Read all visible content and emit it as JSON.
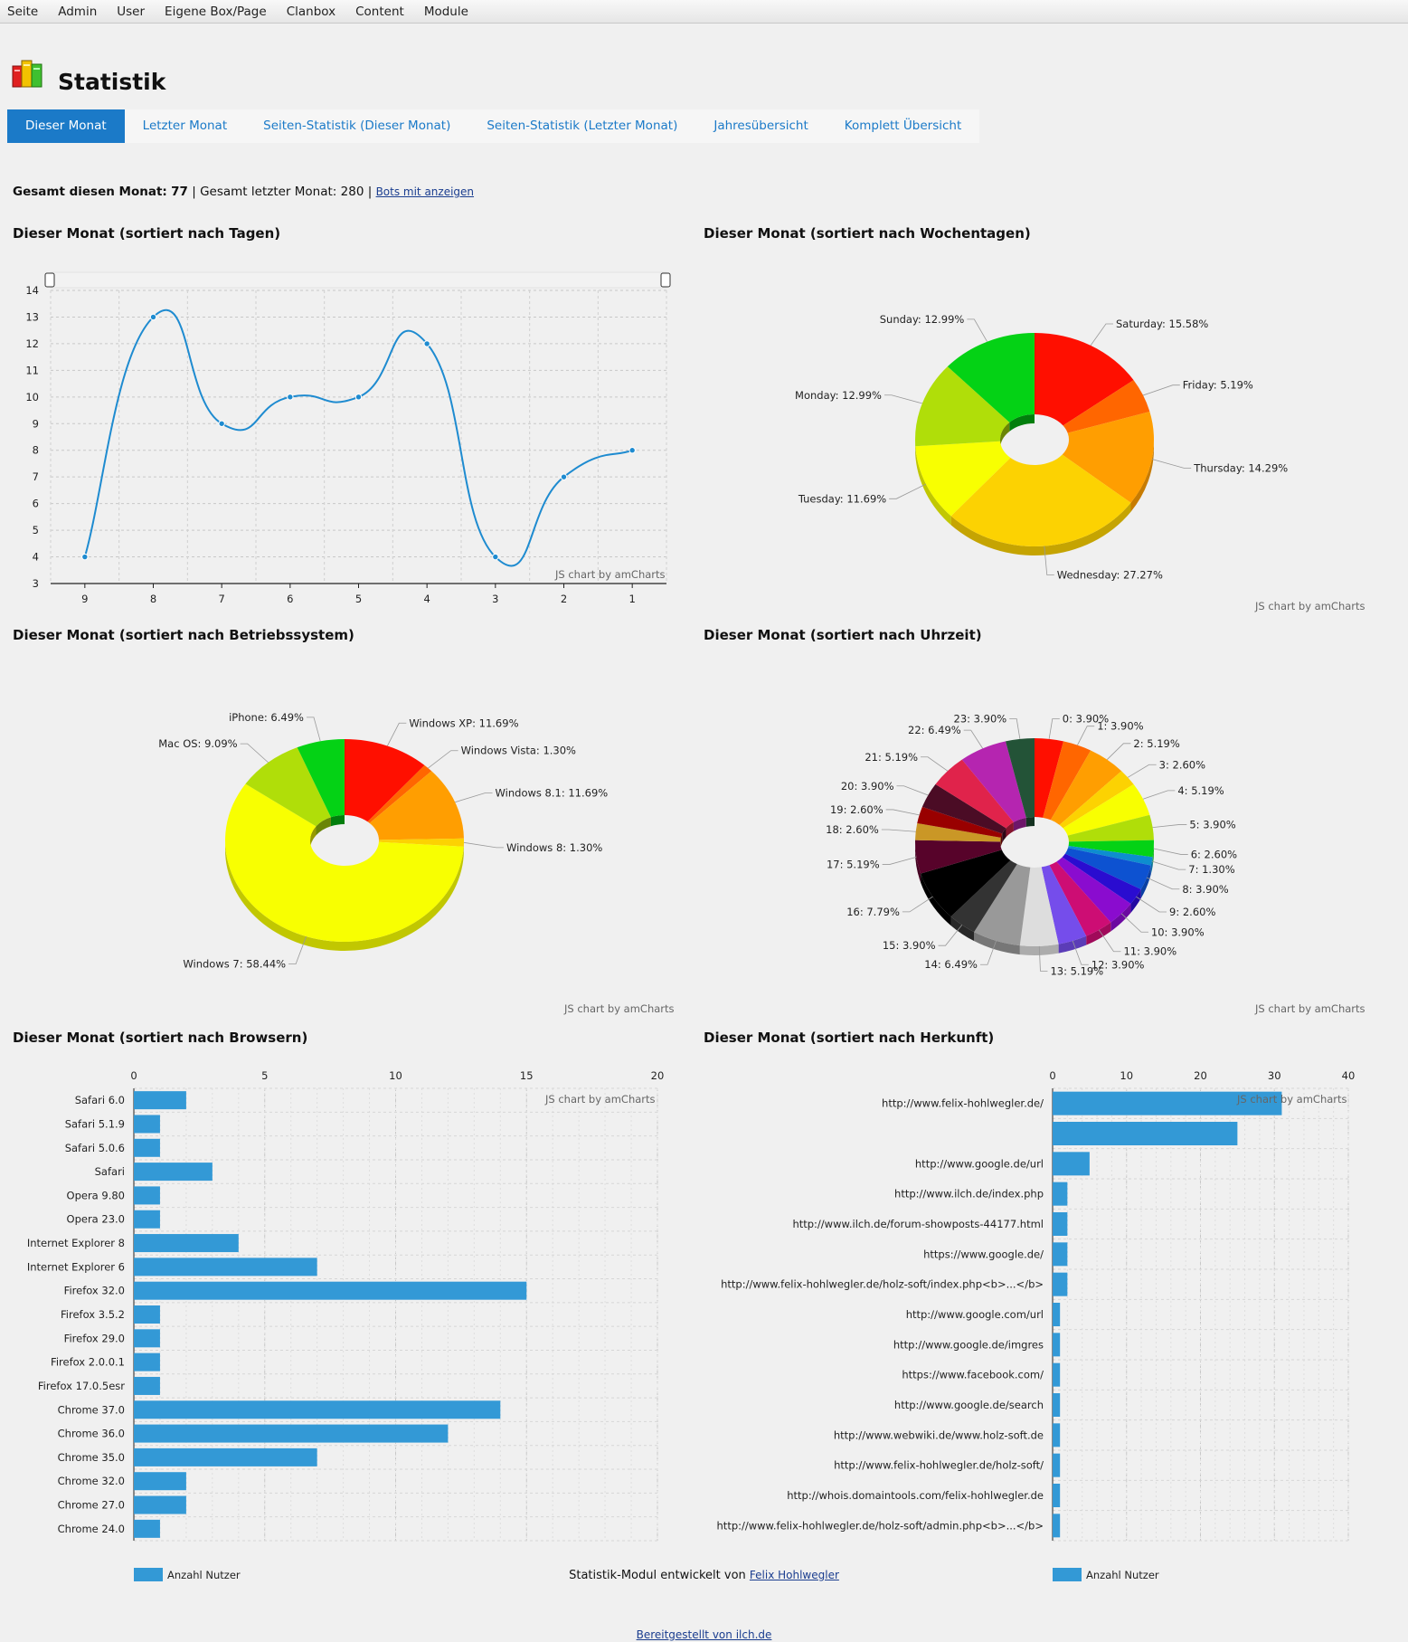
{
  "menu": [
    "Seite",
    "Admin",
    "User",
    "Eigene Box/Page",
    "Clanbox",
    "Content",
    "Module"
  ],
  "page_title": "Statistik",
  "tabs": [
    "Dieser Monat",
    "Letzter Monat",
    "Seiten-Statistik (Dieser Monat)",
    "Seiten-Statistik (Letzter Monat)",
    "Jahresübersicht",
    "Komplett Übersicht"
  ],
  "summary": {
    "this_month_label": "Gesamt diesen Monat:",
    "this_month_value": "77",
    "last_month_label": "Gesamt letzter Monat:",
    "last_month_value": "280",
    "bots_link": "Bots mit anzeigen"
  },
  "credit": "JS chart by amCharts",
  "legend_label": "Anzahl Nutzer",
  "footer": {
    "module_text": "Statistik-Modul entwickelt von",
    "author_link": "Felix Hohlwegler",
    "provided_by": "Bereitgestellt von ilch.de"
  },
  "colors": {
    "accent": "#1b7ac8",
    "bar": "#3399d6",
    "line": "#1e8bd0"
  },
  "chart_data": [
    {
      "type": "line",
      "title": "Dieser Monat (sortiert nach Tagen)",
      "categories": [
        "9",
        "8",
        "7",
        "6",
        "5",
        "4",
        "3",
        "2",
        "1"
      ],
      "values": [
        4,
        13,
        9,
        10,
        10,
        12,
        4,
        7,
        8
      ],
      "ylim": [
        3,
        14
      ],
      "yticks": [
        "3",
        "4",
        "5",
        "6",
        "7",
        "8",
        "9",
        "10",
        "11",
        "12",
        "13",
        "14"
      ],
      "grid": true
    },
    {
      "type": "pie",
      "title": "Dieser Monat (sortiert nach Wochentagen)",
      "slices": [
        {
          "label": "Saturday: 15.58%",
          "value": 15.58,
          "color": "#ff0f00"
        },
        {
          "label": "Friday: 5.19%",
          "value": 5.19,
          "color": "#ff6600"
        },
        {
          "label": "Thursday: 14.29%",
          "value": 14.29,
          "color": "#ff9e01"
        },
        {
          "label": "Wednesday: 27.27%",
          "value": 27.27,
          "color": "#fcd202"
        },
        {
          "label": "Tuesday: 11.69%",
          "value": 11.69,
          "color": "#f8ff01"
        },
        {
          "label": "Monday: 12.99%",
          "value": 12.99,
          "color": "#b0de09"
        },
        {
          "label": "Sunday: 12.99%",
          "value": 12.99,
          "color": "#04d215"
        }
      ]
    },
    {
      "type": "pie",
      "title": "Dieser Monat (sortiert nach Betriebssystem)",
      "slices": [
        {
          "label": "Windows XP: 11.69%",
          "value": 11.69,
          "color": "#ff0f00"
        },
        {
          "label": "Windows Vista: 1.30%",
          "value": 1.3,
          "color": "#ff6600"
        },
        {
          "label": "Windows 8.1: 11.69%",
          "value": 11.69,
          "color": "#ff9e01"
        },
        {
          "label": "Windows 8: 1.30%",
          "value": 1.3,
          "color": "#fcd202"
        },
        {
          "label": "Windows 7: 58.44%",
          "value": 58.44,
          "color": "#f8ff01"
        },
        {
          "label": "Mac OS: 9.09%",
          "value": 9.09,
          "color": "#b0de09"
        },
        {
          "label": "iPhone: 6.49%",
          "value": 6.49,
          "color": "#04d215"
        }
      ]
    },
    {
      "type": "pie",
      "title": "Dieser Monat (sortiert nach Uhrzeit)",
      "slices": [
        {
          "label": "0: 3.90%",
          "value": 3.9,
          "color": "#ff0f00"
        },
        {
          "label": "1: 3.90%",
          "value": 3.9,
          "color": "#ff6600"
        },
        {
          "label": "2: 5.19%",
          "value": 5.19,
          "color": "#ff9e01"
        },
        {
          "label": "3: 2.60%",
          "value": 2.6,
          "color": "#fcd202"
        },
        {
          "label": "4: 5.19%",
          "value": 5.19,
          "color": "#f8ff01"
        },
        {
          "label": "5: 3.90%",
          "value": 3.9,
          "color": "#b0de09"
        },
        {
          "label": "6: 2.60%",
          "value": 2.6,
          "color": "#04d215"
        },
        {
          "label": "7: 1.30%",
          "value": 1.3,
          "color": "#0d8ecf"
        },
        {
          "label": "8: 3.90%",
          "value": 3.9,
          "color": "#0d52d1"
        },
        {
          "label": "9: 2.60%",
          "value": 2.6,
          "color": "#2a0cd0"
        },
        {
          "label": "10: 3.90%",
          "value": 3.9,
          "color": "#8a0ccf"
        },
        {
          "label": "11: 3.90%",
          "value": 3.9,
          "color": "#cd0d74"
        },
        {
          "label": "12: 3.90%",
          "value": 3.9,
          "color": "#754deb"
        },
        {
          "label": "13: 5.19%",
          "value": 5.19,
          "color": "#dddddd"
        },
        {
          "label": "14: 6.49%",
          "value": 6.49,
          "color": "#999999"
        },
        {
          "label": "15: 3.90%",
          "value": 3.9,
          "color": "#333333"
        },
        {
          "label": "16: 7.79%",
          "value": 7.79,
          "color": "#000000"
        },
        {
          "label": "17: 5.19%",
          "value": 5.19,
          "color": "#57032a"
        },
        {
          "label": "18: 2.60%",
          "value": 2.6,
          "color": "#ca9726"
        },
        {
          "label": "19: 2.60%",
          "value": 2.6,
          "color": "#990000"
        },
        {
          "label": "20: 3.90%",
          "value": 3.9,
          "color": "#4b0c25"
        },
        {
          "label": "21: 5.19%",
          "value": 5.19,
          "color": "#e0234b"
        },
        {
          "label": "22: 6.49%",
          "value": 6.49,
          "color": "#b525b0"
        },
        {
          "label": "23: 3.90%",
          "value": 3.9,
          "color": "#235337"
        }
      ]
    },
    {
      "type": "bar",
      "orientation": "horizontal",
      "title": "Dieser Monat (sortiert nach Browsern)",
      "categories": [
        "Safari 6.0",
        "Safari 5.1.9",
        "Safari 5.0.6",
        "Safari",
        "Opera 9.80",
        "Opera 23.0",
        "Internet Explorer 8",
        "Internet Explorer 6",
        "Firefox 32.0",
        "Firefox 3.5.2",
        "Firefox 29.0",
        "Firefox 2.0.0.1",
        "Firefox 17.0.5esr",
        "Chrome 37.0",
        "Chrome 36.0",
        "Chrome 35.0",
        "Chrome 32.0",
        "Chrome 27.0",
        "Chrome 24.0"
      ],
      "values": [
        2,
        1,
        1,
        3,
        1,
        1,
        4,
        7,
        15,
        1,
        1,
        1,
        1,
        14,
        12,
        7,
        2,
        2,
        1
      ],
      "xlim": [
        0,
        20
      ],
      "xticks": [
        "0",
        "5",
        "10",
        "15",
        "20"
      ],
      "legend": "Anzahl Nutzer"
    },
    {
      "type": "bar",
      "orientation": "horizontal",
      "title": "Dieser Monat (sortiert nach Herkunft)",
      "categories": [
        "http://www.felix-hohlwegler.de/",
        "",
        "http://www.google.de/url",
        "http://www.ilch.de/index.php",
        "http://www.ilch.de/forum-showposts-44177.html",
        "https://www.google.de/",
        "http://www.felix-hohlwegler.de/holz-soft/index.php<b>...</b>",
        "http://www.google.com/url",
        "http://www.google.de/imgres",
        "https://www.facebook.com/",
        "http://www.google.de/search",
        "http://www.webwiki.de/www.holz-soft.de",
        "http://www.felix-hohlwegler.de/holz-soft/",
        "http://whois.domaintools.com/felix-hohlwegler.de",
        "http://www.felix-hohlwegler.de/holz-soft/admin.php<b>...</b>"
      ],
      "values": [
        31,
        25,
        5,
        2,
        2,
        2,
        2,
        1,
        1,
        1,
        1,
        1,
        1,
        1,
        1
      ],
      "xlim": [
        0,
        40
      ],
      "xticks": [
        "0",
        "10",
        "20",
        "30",
        "40"
      ],
      "legend": "Anzahl Nutzer"
    }
  ]
}
